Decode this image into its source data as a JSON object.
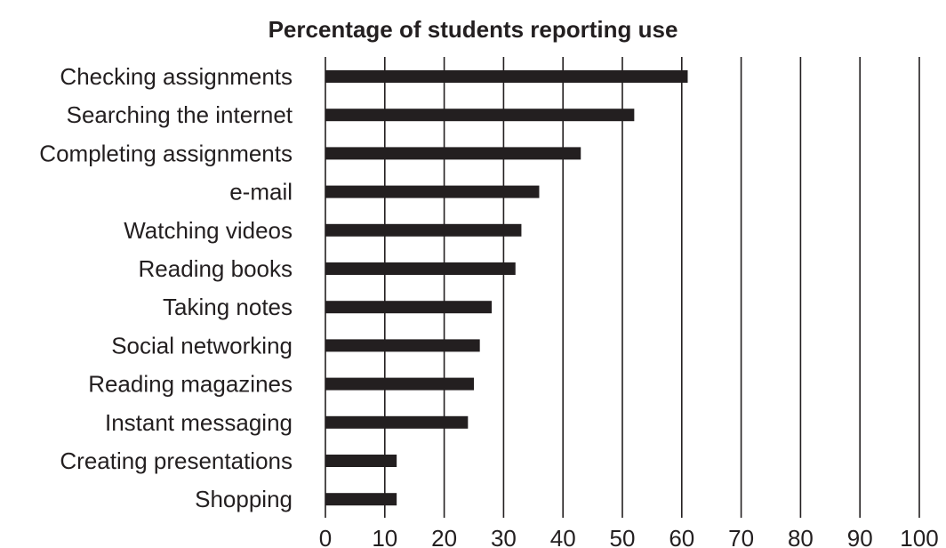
{
  "chart_data": {
    "type": "bar",
    "orientation": "horizontal",
    "title": "Percentage of students reporting use",
    "xlabel": "",
    "ylabel": "",
    "categories": [
      "Checking assignments",
      "Searching the internet",
      "Completing assignments",
      "e-mail",
      "Watching videos",
      "Reading books",
      "Taking notes",
      "Social networking",
      "Reading magazines",
      "Instant messaging",
      "Creating presentations",
      "Shopping"
    ],
    "values": [
      61,
      52,
      43,
      36,
      33,
      32,
      28,
      26,
      25,
      24,
      12,
      12
    ],
    "xlim": [
      0,
      100
    ],
    "xticks": [
      0,
      10,
      20,
      30,
      40,
      50,
      60,
      70,
      80,
      90,
      100
    ],
    "grid": true,
    "legend": "none",
    "colors": {
      "bar": "#231f20",
      "text": "#231f20",
      "grid": "#231f20",
      "background": "#ffffff"
    }
  }
}
